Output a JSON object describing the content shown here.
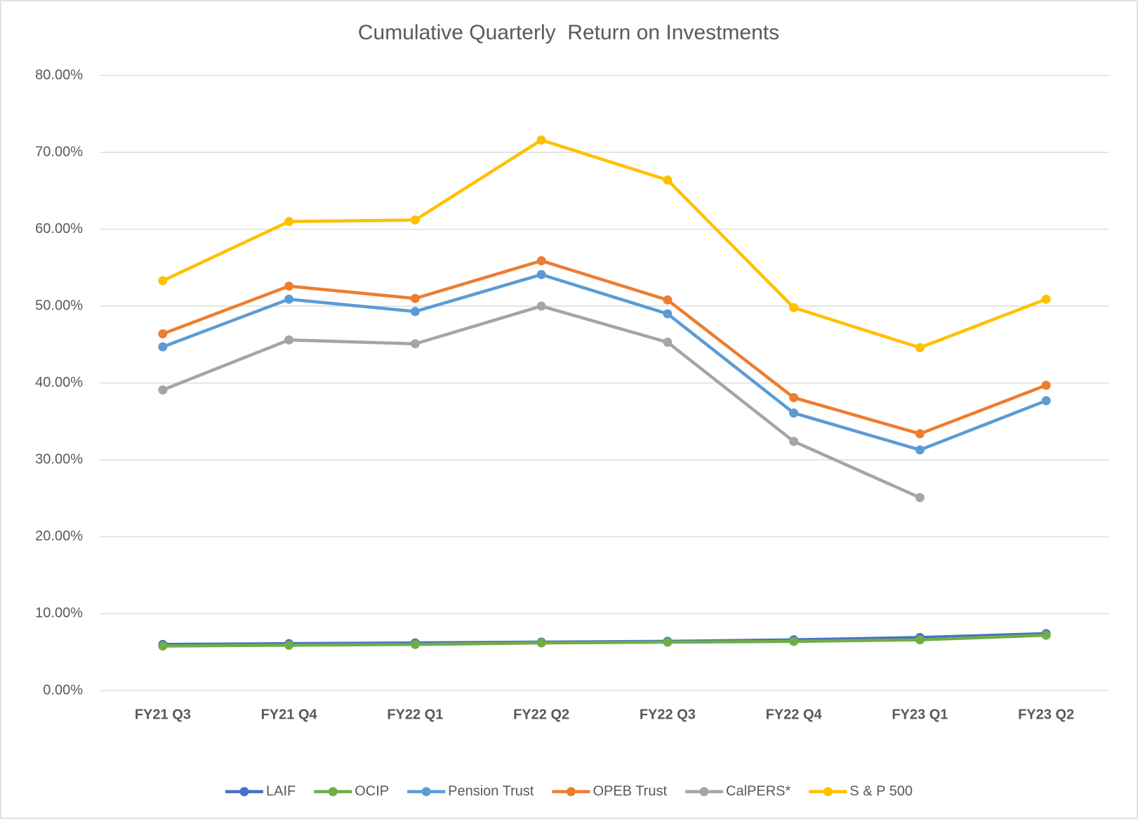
{
  "chart_data": {
    "type": "line",
    "title": "Cumulative Quarterly  Return on Investments",
    "categories": [
      "FY21 Q3",
      "FY21 Q4",
      "FY22 Q1",
      "FY22 Q2",
      "FY22 Q3",
      "FY22 Q4",
      "FY23 Q1",
      "FY23 Q2"
    ],
    "series": [
      {
        "name": "LAIF",
        "color": "#4472c4",
        "values": [
          6.0,
          6.1,
          6.2,
          6.3,
          6.4,
          6.6,
          6.9,
          7.4
        ]
      },
      {
        "name": "OCIP",
        "color": "#70ad47",
        "values": [
          5.8,
          5.9,
          6.0,
          6.2,
          6.3,
          6.4,
          6.6,
          7.2
        ]
      },
      {
        "name": "Pension Trust",
        "color": "#5b9bd5",
        "values": [
          44.7,
          50.9,
          49.3,
          54.1,
          49.0,
          36.1,
          31.3,
          37.7
        ]
      },
      {
        "name": "OPEB Trust",
        "color": "#ed7d31",
        "values": [
          46.4,
          52.6,
          51.0,
          55.9,
          50.8,
          38.1,
          33.4,
          39.7
        ]
      },
      {
        "name": "CalPERS*",
        "color": "#a5a5a5",
        "values": [
          39.1,
          45.6,
          45.1,
          50.0,
          45.3,
          32.4,
          25.1,
          null
        ]
      },
      {
        "name": "S & P 500",
        "color": "#ffc000",
        "values": [
          53.3,
          61.0,
          61.2,
          71.6,
          66.4,
          49.8,
          44.6,
          50.9
        ]
      }
    ],
    "ylim": [
      0,
      80
    ],
    "yticks": [
      {
        "value": 0,
        "label": "0.00%"
      },
      {
        "value": 10,
        "label": "10.00%"
      },
      {
        "value": 20,
        "label": "20.00%"
      },
      {
        "value": 30,
        "label": "30.00%"
      },
      {
        "value": 40,
        "label": "40.00%"
      },
      {
        "value": 50,
        "label": "50.00%"
      },
      {
        "value": 60,
        "label": "60.00%"
      },
      {
        "value": 70,
        "label": "70.00%"
      },
      {
        "value": 80,
        "label": "80.00%"
      }
    ],
    "grid": true,
    "legend": "bottom"
  }
}
